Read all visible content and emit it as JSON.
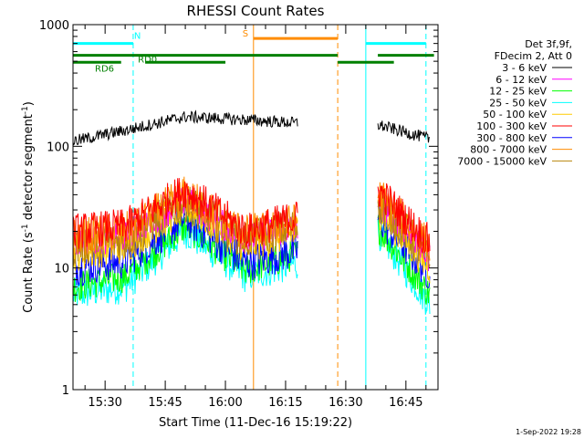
{
  "chart_data": {
    "type": "line",
    "title": "RHESSI Count Rates",
    "xlabel": "Start Time (11-Dec-16 15:19:22)",
    "ylabel_main": "Count Rate (s",
    "ylabel_sup1": "-1",
    "ylabel_mid": " detector segment",
    "ylabel_sup2": "-1",
    "ylabel_end": ")",
    "yscale": "log",
    "ylim": [
      1,
      1000
    ],
    "y_ticks": [
      {
        "value": 1,
        "label": "1"
      },
      {
        "value": 10,
        "label": "10"
      },
      {
        "value": 100,
        "label": "100"
      },
      {
        "value": 1000,
        "label": "1000"
      }
    ],
    "xlim": [
      "15:22",
      "16:53"
    ],
    "x_ticks": [
      {
        "value": "15:30",
        "label": "15:30"
      },
      {
        "value": "15:45",
        "label": "15:45"
      },
      {
        "value": "16:00",
        "label": "16:00"
      },
      {
        "value": "16:15",
        "label": "16:15"
      },
      {
        "value": "16:30",
        "label": "16:30"
      },
      {
        "value": "16:45",
        "label": "16:45"
      }
    ],
    "legend_header": [
      "Det 3f,9f,",
      "FDecim 2, Att 0"
    ],
    "series": [
      {
        "name": "3 - 6 keV",
        "color": "#000000",
        "key_points": [
          [
            "15:22",
            110
          ],
          [
            "15:35",
            135
          ],
          [
            "15:50",
            175
          ],
          [
            "16:05",
            165
          ],
          [
            "16:18",
            155
          ],
          [
            "16:38",
            150
          ],
          [
            "16:51",
            115
          ]
        ]
      },
      {
        "name": "6 - 12 keV",
        "color": "#ff00ff",
        "key_points": [
          [
            "15:22",
            16
          ],
          [
            "15:35",
            18
          ],
          [
            "15:50",
            36
          ],
          [
            "16:05",
            17
          ],
          [
            "16:18",
            22
          ],
          [
            "16:38",
            36
          ],
          [
            "16:51",
            12
          ]
        ]
      },
      {
        "name": "12 - 25 keV",
        "color": "#00ff00",
        "key_points": [
          [
            "15:22",
            7
          ],
          [
            "15:35",
            8.5
          ],
          [
            "15:50",
            22
          ],
          [
            "16:05",
            9.5
          ],
          [
            "16:18",
            13
          ],
          [
            "16:38",
            22
          ],
          [
            "16:51",
            6
          ]
        ]
      },
      {
        "name": "25 - 50 keV",
        "color": "#00ffff",
        "key_points": [
          [
            "15:22",
            6
          ],
          [
            "15:35",
            7
          ],
          [
            "15:50",
            20
          ],
          [
            "16:05",
            8.5
          ],
          [
            "16:18",
            11
          ],
          [
            "16:38",
            20
          ],
          [
            "16:51",
            5
          ]
        ]
      },
      {
        "name": "50 - 100 keV",
        "color": "#ffcc00",
        "key_points": [
          [
            "15:22",
            13
          ],
          [
            "15:35",
            15
          ],
          [
            "15:50",
            32
          ],
          [
            "16:05",
            15
          ],
          [
            "16:18",
            20
          ],
          [
            "16:38",
            30
          ],
          [
            "16:51",
            10
          ]
        ]
      },
      {
        "name": "100 - 300 keV",
        "color": "#ff0000",
        "key_points": [
          [
            "15:22",
            20
          ],
          [
            "15:35",
            22
          ],
          [
            "15:50",
            44
          ],
          [
            "16:05",
            20
          ],
          [
            "16:18",
            26
          ],
          [
            "16:38",
            44
          ],
          [
            "16:51",
            16
          ]
        ]
      },
      {
        "name": "300 - 800 keV",
        "color": "#0000ff",
        "key_points": [
          [
            "15:22",
            10
          ],
          [
            "15:35",
            11.5
          ],
          [
            "15:50",
            26
          ],
          [
            "16:05",
            11
          ],
          [
            "16:18",
            14
          ],
          [
            "16:38",
            26
          ],
          [
            "16:51",
            9
          ]
        ]
      },
      {
        "name": "800 - 7000 keV",
        "color": "#ff8c00",
        "key_points": [
          [
            "15:22",
            18
          ],
          [
            "15:35",
            20
          ],
          [
            "15:50",
            40
          ],
          [
            "16:05",
            19
          ],
          [
            "16:18",
            24
          ],
          [
            "16:38",
            40
          ],
          [
            "16:51",
            15
          ]
        ]
      },
      {
        "name": "7000 - 15000 keV",
        "color": "#b8860b",
        "key_points": [
          [
            "15:22",
            15
          ],
          [
            "15:35",
            17
          ],
          [
            "15:50",
            35
          ],
          [
            "16:05",
            17
          ],
          [
            "16:18",
            22
          ],
          [
            "16:38",
            35
          ],
          [
            "16:51",
            12
          ]
        ]
      }
    ],
    "data_gap": [
      "16:18",
      "16:38"
    ],
    "vertical_lines": [
      {
        "time": "15:22",
        "color": "#00ffff",
        "style": "solid"
      },
      {
        "time": "15:37",
        "color": "#00ffff",
        "style": "dashed"
      },
      {
        "time": "16:07",
        "color": "#ff8c00",
        "style": "solid"
      },
      {
        "time": "16:28",
        "color": "#ff8c00",
        "style": "dashed"
      },
      {
        "time": "16:35",
        "color": "#00ffff",
        "style": "solid"
      },
      {
        "time": "16:50",
        "color": "#00ffff",
        "style": "dashed"
      }
    ],
    "flag_bars": [
      {
        "label": "N",
        "color": "#00ffff",
        "segments": [
          [
            "15:22",
            "15:37"
          ],
          [
            "16:35",
            "16:50"
          ]
        ],
        "value": 700
      },
      {
        "label": "S",
        "color": "#ff8c00",
        "segments": [
          [
            "16:07",
            "16:28"
          ]
        ],
        "value": 770
      },
      {
        "label": "RD0",
        "color": "#008000",
        "segments": [
          [
            "15:22",
            "16:28"
          ],
          [
            "16:38",
            "16:52"
          ]
        ],
        "value": 560
      },
      {
        "label": "RD6",
        "color": "#008000",
        "segments": [
          [
            "15:22",
            "15:34"
          ],
          [
            "15:40",
            "16:00"
          ],
          [
            "16:28",
            "16:42"
          ]
        ],
        "value": 490
      }
    ],
    "footer_date": "1-Sep-2022 19:28"
  }
}
